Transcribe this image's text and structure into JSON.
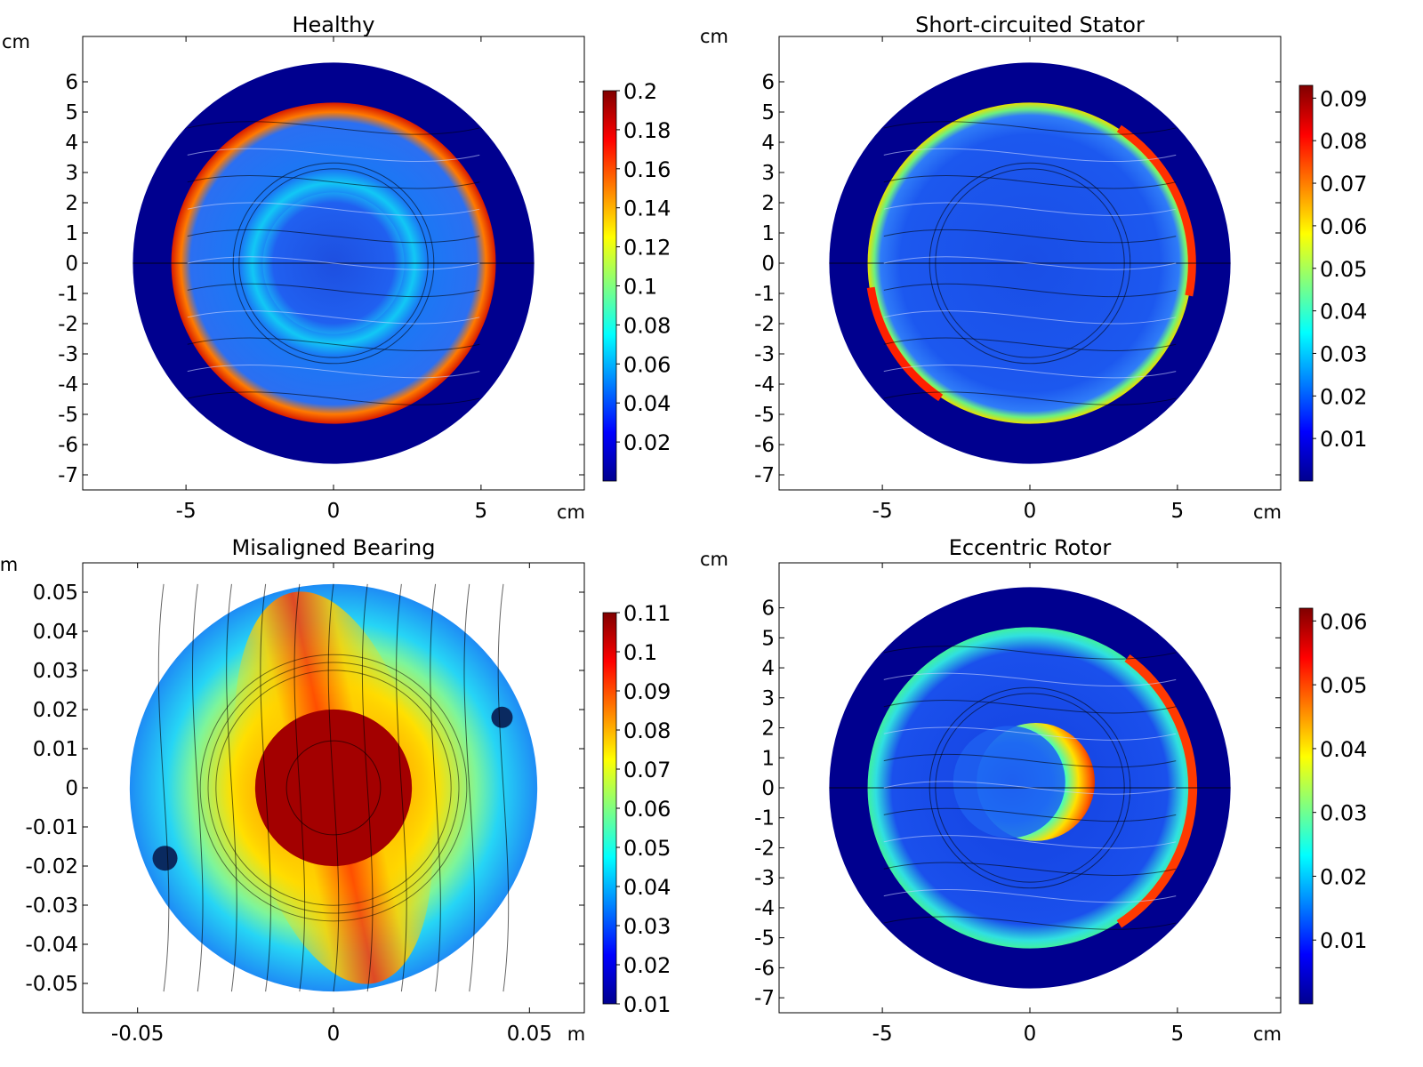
{
  "colors": {
    "jet": [
      "#00008f",
      "#0000ff",
      "#0080ff",
      "#00ffff",
      "#80ff80",
      "#ffff00",
      "#ff8000",
      "#ff0000",
      "#800000"
    ],
    "stator": "#00008f",
    "axis": "#000000"
  },
  "chart_data": [
    {
      "type": "heatmap",
      "title": "Healthy",
      "xunit": "cm",
      "yunit": "cm",
      "xlim": [
        -8.5,
        8.5
      ],
      "ylim": [
        -7.5,
        7.5
      ],
      "xticks": [
        "-5",
        "0",
        "5"
      ],
      "xtick_values": [
        -5,
        0,
        5
      ],
      "yticks": [
        "6",
        "5",
        "4",
        "3",
        "2",
        "1",
        "0",
        "-1",
        "-2",
        "-3",
        "-4",
        "-5",
        "-6",
        "-7"
      ],
      "ytick_values": [
        6,
        5,
        4,
        3,
        2,
        1,
        0,
        -1,
        -2,
        -3,
        -4,
        -5,
        -6,
        -7
      ],
      "colorbar": {
        "min": 0.0,
        "max": 0.2,
        "ticks": [
          "0.2",
          "0.18",
          "0.16",
          "0.14",
          "0.12",
          "0.1",
          "0.08",
          "0.06",
          "0.04",
          "0.02"
        ],
        "tick_values": [
          0.2,
          0.18,
          0.16,
          0.14,
          0.12,
          0.1,
          0.08,
          0.06,
          0.04,
          0.02
        ]
      },
      "field": "healthy"
    },
    {
      "type": "heatmap",
      "title": "Short-circuited Stator",
      "xunit": "cm",
      "yunit": "cm",
      "xlim": [
        -8.5,
        8.5
      ],
      "ylim": [
        -7.5,
        7.5
      ],
      "xticks": [
        "-5",
        "0",
        "5"
      ],
      "xtick_values": [
        -5,
        0,
        5
      ],
      "yticks": [
        "6",
        "5",
        "4",
        "3",
        "2",
        "1",
        "0",
        "-1",
        "-2",
        "-3",
        "-4",
        "-5",
        "-6",
        "-7"
      ],
      "ytick_values": [
        6,
        5,
        4,
        3,
        2,
        1,
        0,
        -1,
        -2,
        -3,
        -4,
        -5,
        -6,
        -7
      ],
      "colorbar": {
        "min": 0.0,
        "max": 0.093,
        "ticks": [
          "0.09",
          "0.08",
          "0.07",
          "0.06",
          "0.05",
          "0.04",
          "0.03",
          "0.02",
          "0.01"
        ],
        "tick_values": [
          0.09,
          0.08,
          0.07,
          0.06,
          0.05,
          0.04,
          0.03,
          0.02,
          0.01
        ]
      },
      "field": "short"
    },
    {
      "type": "heatmap",
      "title": "Misaligned Bearing",
      "xunit": "m",
      "yunit": "m",
      "xlim": [
        -0.064,
        0.064
      ],
      "ylim": [
        -0.0575,
        0.0575
      ],
      "xticks": [
        "-0.05",
        "0",
        "0.05"
      ],
      "xtick_values": [
        -0.05,
        0,
        0.05
      ],
      "yticks": [
        "0.05",
        "0.04",
        "0.03",
        "0.02",
        "0.01",
        "0",
        "-0.01",
        "-0.02",
        "-0.03",
        "-0.04",
        "-0.05"
      ],
      "ytick_values": [
        0.05,
        0.04,
        0.03,
        0.02,
        0.01,
        0,
        -0.01,
        -0.02,
        -0.03,
        -0.04,
        -0.05
      ],
      "colorbar": {
        "min": 0.01,
        "max": 0.11,
        "ticks": [
          "0.11",
          "0.1",
          "0.09",
          "0.08",
          "0.07",
          "0.06",
          "0.05",
          "0.04",
          "0.03",
          "0.02",
          "0.01"
        ],
        "tick_values": [
          0.11,
          0.1,
          0.09,
          0.08,
          0.07,
          0.06,
          0.05,
          0.04,
          0.03,
          0.02,
          0.01
        ]
      },
      "field": "bearing"
    },
    {
      "type": "heatmap",
      "title": "Eccentric Rotor",
      "xunit": "cm",
      "yunit": "cm",
      "xlim": [
        -8.5,
        8.5
      ],
      "ylim": [
        -7.5,
        7.5
      ],
      "xticks": [
        "-5",
        "0",
        "5"
      ],
      "xtick_values": [
        -5,
        0,
        5
      ],
      "yticks": [
        "6",
        "5",
        "4",
        "3",
        "2",
        "1",
        "0",
        "-1",
        "-2",
        "-3",
        "-4",
        "-5",
        "-6",
        "-7"
      ],
      "ytick_values": [
        6,
        5,
        4,
        3,
        2,
        1,
        0,
        -1,
        -2,
        -3,
        -4,
        -5,
        -6,
        -7
      ],
      "colorbar": {
        "min": 0.0,
        "max": 0.062,
        "ticks": [
          "0.06",
          "0.05",
          "0.04",
          "0.03",
          "0.02",
          "0.01"
        ],
        "tick_values": [
          0.06,
          0.05,
          0.04,
          0.03,
          0.02,
          0.01
        ]
      },
      "field": "eccentric"
    }
  ]
}
